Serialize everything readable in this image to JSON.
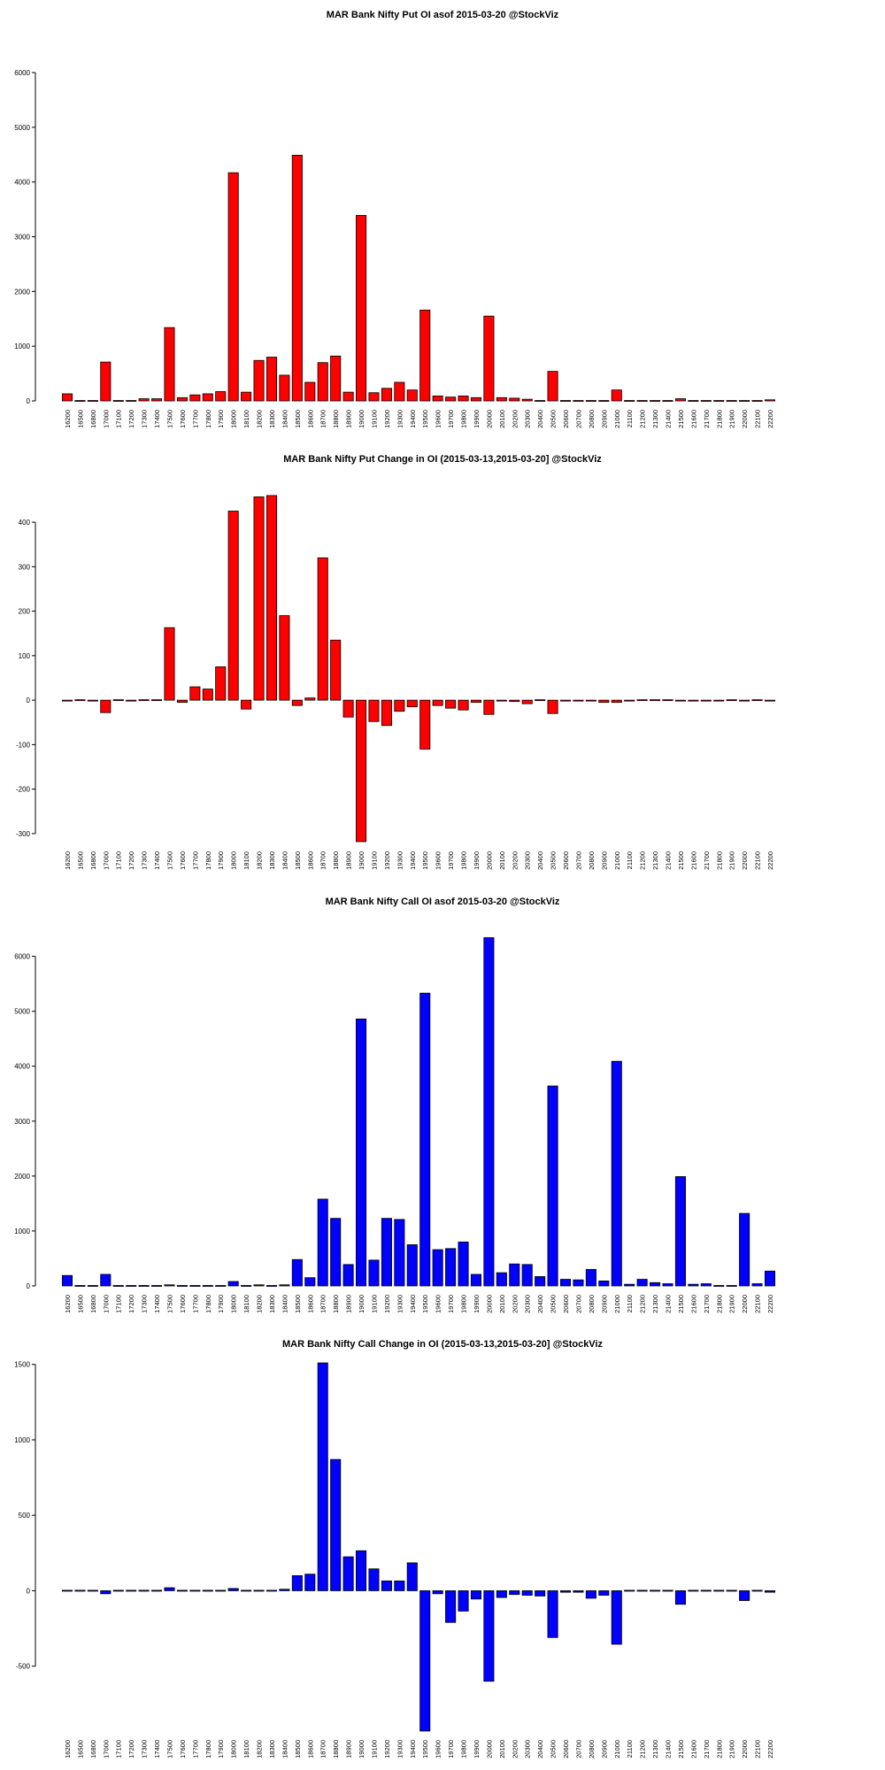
{
  "chart_data": [
    {
      "type": "bar",
      "title": "MAR Bank Nifty Put OI asof 2015-03-20 @StockViz",
      "color": "#ff0000",
      "ylim": [
        0,
        6000
      ],
      "yticks": [
        0,
        1000,
        2000,
        3000,
        4000,
        5000,
        6000
      ],
      "categories": [
        "16200",
        "16500",
        "16800",
        "17000",
        "17100",
        "17200",
        "17300",
        "17400",
        "17500",
        "17600",
        "17700",
        "17800",
        "17900",
        "18000",
        "18100",
        "18200",
        "18300",
        "18400",
        "18500",
        "18600",
        "18700",
        "18800",
        "18900",
        "19000",
        "19100",
        "19200",
        "19300",
        "19400",
        "19500",
        "19600",
        "19700",
        "19800",
        "19900",
        "20000",
        "20100",
        "20200",
        "20300",
        "20400",
        "20500",
        "20600",
        "20700",
        "20800",
        "20900",
        "21000",
        "21100",
        "21200",
        "21300",
        "21400",
        "21500",
        "21600",
        "21700",
        "21800",
        "21900",
        "22000",
        "22100",
        "22200"
      ],
      "values": [
        130,
        10,
        10,
        710,
        10,
        10,
        40,
        40,
        1340,
        60,
        110,
        130,
        170,
        4170,
        160,
        740,
        800,
        470,
        4490,
        340,
        700,
        820,
        160,
        3390,
        150,
        230,
        340,
        200,
        1660,
        90,
        70,
        90,
        60,
        1550,
        60,
        50,
        30,
        10,
        540,
        10,
        10,
        10,
        10,
        200,
        10,
        10,
        10,
        10,
        40,
        10,
        10,
        10,
        10,
        10,
        10,
        20
      ]
    },
    {
      "type": "bar",
      "title": "MAR Bank Nifty Put Change in OI (2015-03-13,2015-03-20] @StockViz",
      "color": "#ff0000",
      "ylim": [
        -320,
        430
      ],
      "yticks": [
        -300,
        -200,
        -100,
        0,
        100,
        200,
        300,
        400
      ],
      "categories": [
        "16200",
        "16500",
        "16800",
        "17000",
        "17100",
        "17200",
        "17300",
        "17400",
        "17500",
        "17600",
        "17700",
        "17800",
        "17900",
        "18000",
        "18100",
        "18200",
        "18300",
        "18400",
        "18500",
        "18600",
        "18700",
        "18800",
        "18900",
        "19000",
        "19100",
        "19200",
        "19300",
        "19400",
        "19500",
        "19600",
        "19700",
        "19800",
        "19900",
        "20000",
        "20100",
        "20200",
        "20300",
        "20400",
        "20500",
        "20600",
        "20700",
        "20800",
        "20900",
        "21000",
        "21100",
        "21200",
        "21300",
        "21400",
        "21500",
        "21600",
        "21700",
        "21800",
        "21900",
        "22000",
        "22100",
        "22200"
      ],
      "values": [
        -2,
        0,
        -2,
        -28,
        0,
        -2,
        0,
        0,
        163,
        -5,
        30,
        25,
        75,
        425,
        -20,
        457,
        460,
        190,
        -12,
        5,
        320,
        135,
        -38,
        -318,
        -48,
        -57,
        -25,
        -15,
        -110,
        -12,
        -18,
        -22,
        -5,
        -32,
        -2,
        -3,
        -8,
        0,
        -30,
        -2,
        -2,
        -2,
        -5,
        -5,
        -2,
        0,
        0,
        0,
        -2,
        -2,
        -2,
        -2,
        0,
        -2,
        0,
        -2
      ]
    },
    {
      "type": "bar",
      "title": "MAR Bank Nifty Call OI asof 2015-03-20 @StockViz",
      "color": "#0000ff",
      "ylim": [
        0,
        6300
      ],
      "yticks": [
        0,
        1000,
        2000,
        3000,
        4000,
        5000,
        6000
      ],
      "categories": [
        "16200",
        "16500",
        "16800",
        "17000",
        "17100",
        "17200",
        "17300",
        "17400",
        "17500",
        "17600",
        "17700",
        "17800",
        "17900",
        "18000",
        "18100",
        "18200",
        "18300",
        "18400",
        "18500",
        "18600",
        "18700",
        "18800",
        "18900",
        "19000",
        "19100",
        "19200",
        "19300",
        "19400",
        "19500",
        "19600",
        "19700",
        "19800",
        "19900",
        "20000",
        "20100",
        "20200",
        "20300",
        "20400",
        "20500",
        "20600",
        "20700",
        "20800",
        "20900",
        "21000",
        "21100",
        "21200",
        "21300",
        "21400",
        "21500",
        "21600",
        "21700",
        "21800",
        "21900",
        "22000",
        "22100",
        "22200"
      ],
      "values": [
        190,
        10,
        10,
        210,
        10,
        10,
        10,
        10,
        20,
        10,
        10,
        10,
        10,
        80,
        10,
        20,
        10,
        20,
        480,
        150,
        1580,
        1230,
        390,
        4860,
        470,
        1230,
        1210,
        750,
        5330,
        660,
        680,
        800,
        210,
        6340,
        240,
        400,
        390,
        170,
        3640,
        120,
        110,
        300,
        90,
        4090,
        30,
        120,
        60,
        40,
        1990,
        30,
        40,
        10,
        10,
        1320,
        40,
        270
      ]
    },
    {
      "type": "bar",
      "title": "MAR Bank Nifty Call Change in OI (2015-03-13,2015-03-20] @StockViz",
      "color": "#0000ff",
      "ylim": [
        -930,
        1510
      ],
      "yticks": [
        -500,
        0,
        500,
        1000,
        1500
      ],
      "categories": [
        "16200",
        "16500",
        "16800",
        "17000",
        "17100",
        "17200",
        "17300",
        "17400",
        "17500",
        "17600",
        "17700",
        "17800",
        "17900",
        "18000",
        "18100",
        "18200",
        "18300",
        "18400",
        "18500",
        "18600",
        "18700",
        "18800",
        "18900",
        "19000",
        "19100",
        "19200",
        "19300",
        "19400",
        "19500",
        "19600",
        "19700",
        "19800",
        "19900",
        "20000",
        "20100",
        "20200",
        "20300",
        "20400",
        "20500",
        "20600",
        "20700",
        "20800",
        "20900",
        "21000",
        "21100",
        "21200",
        "21300",
        "21400",
        "21500",
        "21600",
        "21700",
        "21800",
        "21900",
        "22000",
        "22100",
        "22200"
      ],
      "values": [
        5,
        -5,
        -5,
        -20,
        -5,
        -5,
        -5,
        -5,
        20,
        -5,
        -5,
        -5,
        -5,
        15,
        -5,
        5,
        5,
        10,
        100,
        110,
        1510,
        870,
        225,
        265,
        145,
        65,
        65,
        185,
        -930,
        -20,
        -210,
        -135,
        -55,
        -600,
        -45,
        -25,
        -30,
        -35,
        -310,
        -10,
        -10,
        -50,
        -30,
        -355,
        -5,
        -5,
        -5,
        -5,
        -90,
        -5,
        -5,
        -5,
        -5,
        -65,
        -5,
        -10
      ]
    }
  ]
}
